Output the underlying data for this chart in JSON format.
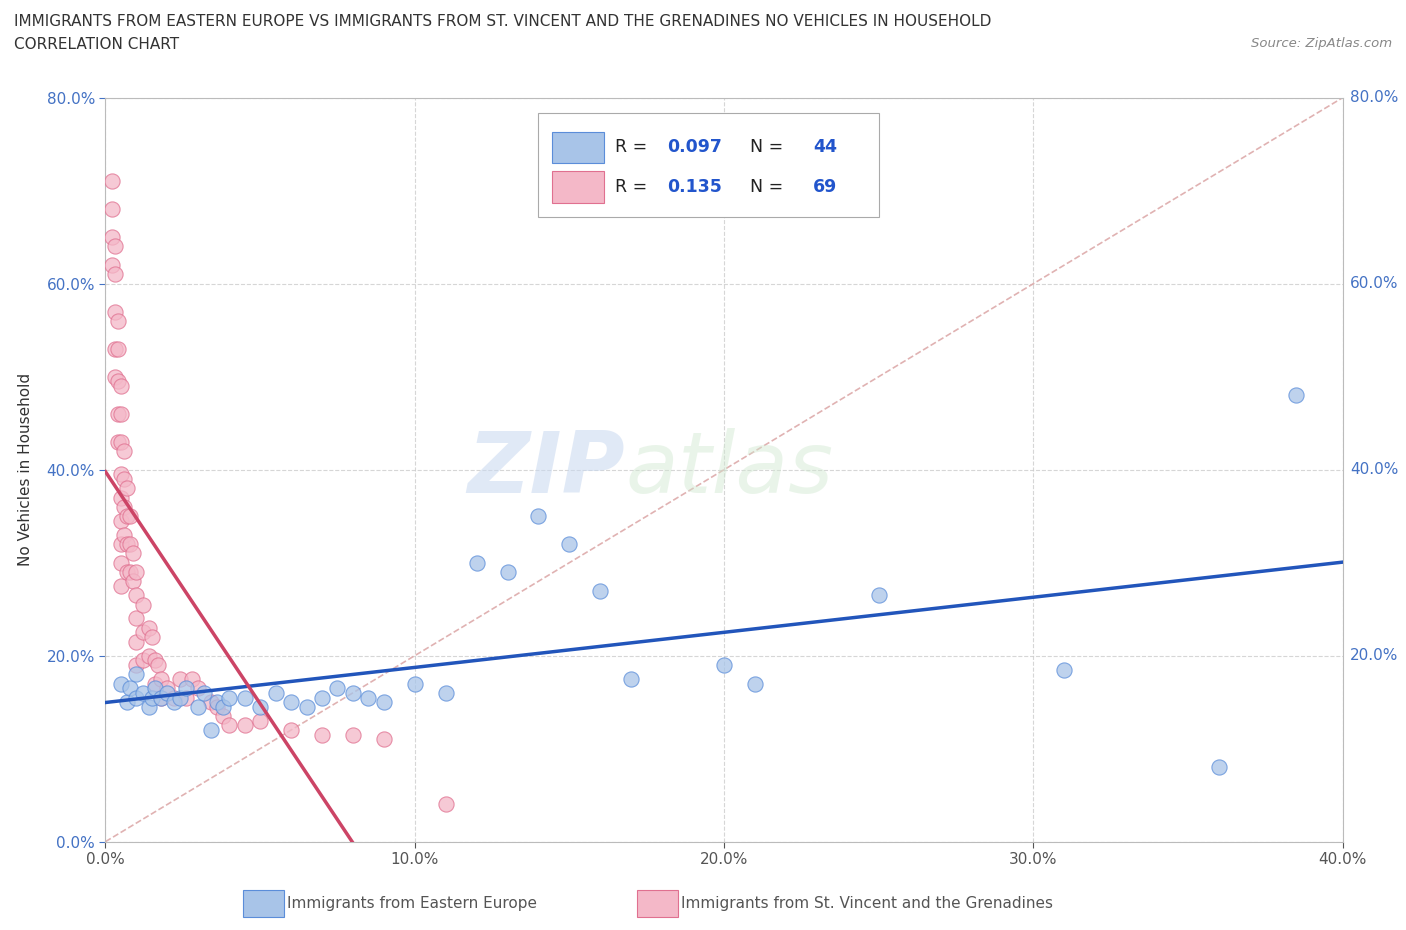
{
  "title_line1": "IMMIGRANTS FROM EASTERN EUROPE VS IMMIGRANTS FROM ST. VINCENT AND THE GRENADINES NO VEHICLES IN HOUSEHOLD",
  "title_line2": "CORRELATION CHART",
  "source": "Source: ZipAtlas.com",
  "xlabel_label": "Immigrants from Eastern Europe",
  "xlabel_label2": "Immigrants from St. Vincent and the Grenadines",
  "ylabel": "No Vehicles in Household",
  "xlim": [
    0.0,
    0.4
  ],
  "ylim": [
    0.0,
    0.8
  ],
  "xticks": [
    0.0,
    0.1,
    0.2,
    0.3,
    0.4
  ],
  "yticks": [
    0.0,
    0.2,
    0.4,
    0.6,
    0.8
  ],
  "R_blue": 0.097,
  "N_blue": 44,
  "R_pink": 0.135,
  "N_pink": 69,
  "blue_color": "#a8c4e8",
  "pink_color": "#f4b8c8",
  "blue_edge": "#5b8dd9",
  "pink_edge": "#e07090",
  "trend_blue": "#2255bb",
  "trend_pink": "#cc4466",
  "diag_color": "#ddaaaa",
  "watermark_zip": "ZIP",
  "watermark_atlas": "atlas",
  "blue_scatter_x": [
    0.005,
    0.007,
    0.008,
    0.01,
    0.01,
    0.012,
    0.014,
    0.015,
    0.016,
    0.018,
    0.02,
    0.022,
    0.024,
    0.026,
    0.03,
    0.032,
    0.034,
    0.036,
    0.038,
    0.04,
    0.045,
    0.05,
    0.055,
    0.06,
    0.065,
    0.07,
    0.075,
    0.08,
    0.085,
    0.09,
    0.1,
    0.11,
    0.12,
    0.13,
    0.14,
    0.15,
    0.16,
    0.17,
    0.2,
    0.21,
    0.25,
    0.31,
    0.36,
    0.385
  ],
  "blue_scatter_y": [
    0.17,
    0.15,
    0.165,
    0.155,
    0.18,
    0.16,
    0.145,
    0.155,
    0.165,
    0.155,
    0.16,
    0.15,
    0.155,
    0.165,
    0.145,
    0.16,
    0.12,
    0.15,
    0.145,
    0.155,
    0.155,
    0.145,
    0.16,
    0.15,
    0.145,
    0.155,
    0.165,
    0.16,
    0.155,
    0.15,
    0.17,
    0.16,
    0.3,
    0.29,
    0.35,
    0.32,
    0.27,
    0.175,
    0.19,
    0.17,
    0.265,
    0.185,
    0.08,
    0.48
  ],
  "pink_scatter_x": [
    0.002,
    0.002,
    0.002,
    0.002,
    0.003,
    0.003,
    0.003,
    0.003,
    0.003,
    0.004,
    0.004,
    0.004,
    0.004,
    0.004,
    0.005,
    0.005,
    0.005,
    0.005,
    0.005,
    0.005,
    0.005,
    0.005,
    0.005,
    0.006,
    0.006,
    0.006,
    0.006,
    0.007,
    0.007,
    0.007,
    0.007,
    0.008,
    0.008,
    0.008,
    0.009,
    0.009,
    0.01,
    0.01,
    0.01,
    0.01,
    0.01,
    0.012,
    0.012,
    0.012,
    0.014,
    0.014,
    0.015,
    0.016,
    0.016,
    0.017,
    0.018,
    0.018,
    0.02,
    0.022,
    0.024,
    0.026,
    0.028,
    0.03,
    0.034,
    0.036,
    0.038,
    0.04,
    0.045,
    0.05,
    0.06,
    0.07,
    0.08,
    0.09,
    0.11
  ],
  "pink_scatter_y": [
    0.71,
    0.68,
    0.65,
    0.62,
    0.64,
    0.61,
    0.57,
    0.53,
    0.5,
    0.56,
    0.53,
    0.495,
    0.46,
    0.43,
    0.49,
    0.46,
    0.43,
    0.395,
    0.37,
    0.345,
    0.32,
    0.3,
    0.275,
    0.42,
    0.39,
    0.36,
    0.33,
    0.38,
    0.35,
    0.32,
    0.29,
    0.35,
    0.32,
    0.29,
    0.31,
    0.28,
    0.29,
    0.265,
    0.24,
    0.215,
    0.19,
    0.255,
    0.225,
    0.195,
    0.23,
    0.2,
    0.22,
    0.195,
    0.17,
    0.19,
    0.175,
    0.155,
    0.165,
    0.155,
    0.175,
    0.155,
    0.175,
    0.165,
    0.15,
    0.145,
    0.135,
    0.125,
    0.125,
    0.13,
    0.12,
    0.115,
    0.115,
    0.11,
    0.04
  ]
}
